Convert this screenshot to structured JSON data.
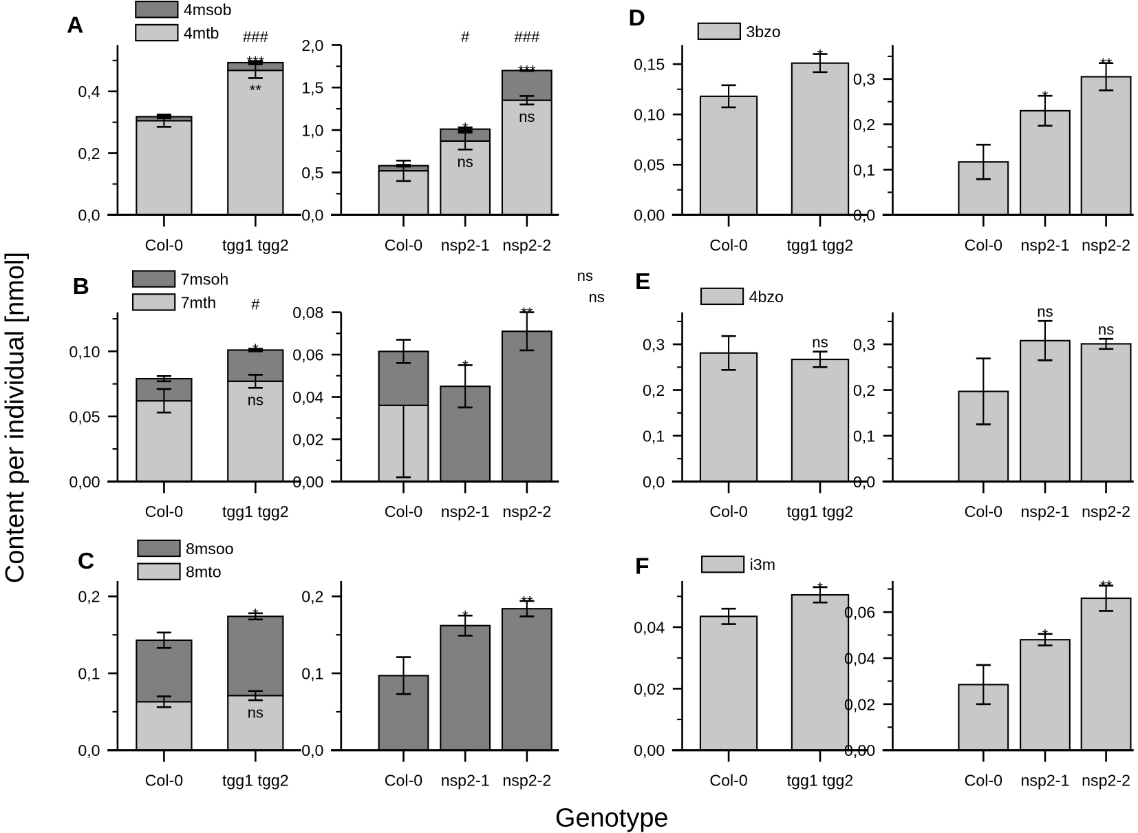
{
  "figure": {
    "ylabel": "Content per individual [nmol]",
    "xlabel": "Genotype",
    "panel_letters": [
      "A",
      "B",
      "C",
      "D",
      "E",
      "F"
    ],
    "stray_annotations": [
      "ns",
      "ns"
    ],
    "colors": {
      "light": "#c8c8c8",
      "dark": "#808080",
      "axis": "#000000"
    }
  },
  "chart_data": [
    {
      "type": "bar",
      "stacked": true,
      "panel": "A-left",
      "categories": [
        "Col-0",
        "tgg1 tgg2"
      ],
      "ylim": [
        0,
        0.55
      ],
      "yticks": [
        {
          "v": 0,
          "label": "0,0"
        },
        {
          "v": 0.2,
          "label": "0,2"
        },
        {
          "v": 0.4,
          "label": "0,4"
        }
      ],
      "minor_step": 0.1,
      "legend": [
        {
          "name": "4msob",
          "color": "dark"
        },
        {
          "name": "4mtb",
          "color": "light"
        }
      ],
      "series": [
        {
          "name": "4mtb",
          "color": "light",
          "values": [
            0.305,
            0.468
          ],
          "errors": [
            0.02,
            0.025
          ]
        },
        {
          "name": "4msob",
          "color": "dark",
          "values": [
            0.013,
            0.025
          ],
          "errors": [
            0.005,
            0.005
          ]
        }
      ],
      "annotations": [
        {
          "cat": 1,
          "text": "**",
          "anchor": "inside"
        },
        {
          "cat": 1,
          "text": "***",
          "anchor": "above"
        },
        {
          "cat": 1,
          "text": "###",
          "anchor": "top"
        }
      ]
    },
    {
      "type": "bar",
      "stacked": true,
      "panel": "A-right",
      "categories": [
        "Col-0",
        "nsp2-1",
        "nsp2-2"
      ],
      "ylim": [
        0,
        2.0
      ],
      "yticks": [
        {
          "v": 0,
          "label": "0,0"
        },
        {
          "v": 0.5,
          "label": "0,5"
        },
        {
          "v": 1.0,
          "label": "1,0"
        },
        {
          "v": 1.5,
          "label": "1,5"
        },
        {
          "v": 2.0,
          "label": "2,0"
        }
      ],
      "minor_step": 0.25,
      "series": [
        {
          "name": "4mtb",
          "color": "light",
          "values": [
            0.52,
            0.87,
            1.35
          ],
          "errors": [
            0.12,
            0.1,
            0.05
          ]
        },
        {
          "name": "4msob",
          "color": "dark",
          "values": [
            0.06,
            0.14,
            0.35
          ],
          "errors": [
            0.01,
            0.02,
            0.005
          ]
        }
      ],
      "annotations": [
        {
          "cat": 1,
          "text": "ns",
          "anchor": "inside"
        },
        {
          "cat": 2,
          "text": "ns",
          "anchor": "inside"
        },
        {
          "cat": 1,
          "text": "*",
          "anchor": "above"
        },
        {
          "cat": 2,
          "text": "***",
          "anchor": "above"
        },
        {
          "cat": 1,
          "text": "#",
          "anchor": "top"
        },
        {
          "cat": 2,
          "text": "###",
          "anchor": "top"
        }
      ]
    },
    {
      "type": "bar",
      "stacked": true,
      "panel": "B-left",
      "categories": [
        "Col-0",
        "tgg1 tgg2"
      ],
      "ylim": [
        0,
        0.13
      ],
      "yticks": [
        {
          "v": 0,
          "label": "0,00"
        },
        {
          "v": 0.05,
          "label": "0,05"
        },
        {
          "v": 0.1,
          "label": "0,10"
        }
      ],
      "minor_step": 0.025,
      "legend": [
        {
          "name": "7msoh",
          "color": "dark"
        },
        {
          "name": "7mth",
          "color": "light"
        }
      ],
      "series": [
        {
          "name": "7mth",
          "color": "light",
          "values": [
            0.062,
            0.077
          ],
          "errors": [
            0.009,
            0.005
          ]
        },
        {
          "name": "7msoh",
          "color": "dark",
          "values": [
            0.017,
            0.024
          ],
          "errors": [
            0.002,
            0.001
          ]
        }
      ],
      "annotations": [
        {
          "cat": 1,
          "text": "ns",
          "anchor": "inside"
        },
        {
          "cat": 1,
          "text": "*",
          "anchor": "above"
        },
        {
          "cat": 1,
          "text": "#",
          "anchor": "top"
        }
      ]
    },
    {
      "type": "bar",
      "stacked": true,
      "panel": "B-right",
      "categories": [
        "Col-0",
        "nsp2-1",
        "nsp2-2"
      ],
      "ylim": [
        0,
        0.08
      ],
      "yticks": [
        {
          "v": 0,
          "label": "0,00"
        },
        {
          "v": 0.02,
          "label": "0,02"
        },
        {
          "v": 0.04,
          "label": "0,04"
        },
        {
          "v": 0.06,
          "label": "0,06"
        },
        {
          "v": 0.08,
          "label": "0,08"
        }
      ],
      "minor_step": 0.01,
      "series": [
        {
          "name": "7mth",
          "color": "light",
          "values": [
            0.036,
            0,
            0
          ],
          "errors": [
            0.034,
            0,
            0
          ],
          "err_dir": "down"
        },
        {
          "name": "7msoh",
          "color": "dark",
          "values": [
            0.0255,
            0.045,
            0.071
          ],
          "errors": [
            0.0055,
            0.01,
            0.009
          ]
        }
      ],
      "annotations": [
        {
          "cat": 1,
          "text": "*",
          "anchor": "above"
        },
        {
          "cat": 2,
          "text": "**",
          "anchor": "above"
        }
      ]
    },
    {
      "type": "bar",
      "stacked": true,
      "panel": "C-left",
      "categories": [
        "Col-0",
        "tgg1 tgg2"
      ],
      "ylim": [
        0,
        0.22
      ],
      "yticks": [
        {
          "v": 0,
          "label": "0,0"
        },
        {
          "v": 0.1,
          "label": "0,1"
        },
        {
          "v": 0.2,
          "label": "0,2"
        }
      ],
      "minor_step": 0.05,
      "legend": [
        {
          "name": "8msoo",
          "color": "dark"
        },
        {
          "name": "8mto",
          "color": "light"
        }
      ],
      "series": [
        {
          "name": "8mto",
          "color": "light",
          "values": [
            0.063,
            0.071
          ],
          "errors": [
            0.007,
            0.006
          ]
        },
        {
          "name": "8msoo",
          "color": "dark",
          "values": [
            0.08,
            0.103
          ],
          "errors": [
            0.01,
            0.004
          ]
        }
      ],
      "annotations": [
        {
          "cat": 1,
          "text": "ns",
          "anchor": "inside"
        },
        {
          "cat": 1,
          "text": "*",
          "anchor": "above"
        }
      ]
    },
    {
      "type": "bar",
      "stacked": false,
      "panel": "C-right",
      "categories": [
        "Col-0",
        "nsp2-1",
        "nsp2-2"
      ],
      "ylim": [
        0,
        0.22
      ],
      "yticks": [
        {
          "v": 0,
          "label": "0,0"
        },
        {
          "v": 0.1,
          "label": "0,1"
        },
        {
          "v": 0.2,
          "label": "0,2"
        }
      ],
      "minor_step": 0.05,
      "series": [
        {
          "name": "8msoo",
          "color": "dark",
          "values": [
            0.097,
            0.162,
            0.184
          ],
          "errors": [
            0.024,
            0.013,
            0.01
          ]
        }
      ],
      "annotations": [
        {
          "cat": 1,
          "text": "*",
          "anchor": "above"
        },
        {
          "cat": 2,
          "text": "**",
          "anchor": "above"
        }
      ]
    },
    {
      "type": "bar",
      "stacked": false,
      "panel": "D-left",
      "categories": [
        "Col-0",
        "tgg1 tgg2"
      ],
      "ylim": [
        0,
        0.169
      ],
      "yticks": [
        {
          "v": 0,
          "label": "0,00"
        },
        {
          "v": 0.05,
          "label": "0,05"
        },
        {
          "v": 0.1,
          "label": "0,10"
        },
        {
          "v": 0.15,
          "label": "0,15"
        }
      ],
      "minor_step": 0.025,
      "legend": [
        {
          "name": "3bzo",
          "color": "light"
        }
      ],
      "series": [
        {
          "name": "3bzo",
          "color": "light",
          "values": [
            0.118,
            0.151
          ],
          "errors": [
            0.011,
            0.009
          ]
        }
      ],
      "annotations": [
        {
          "cat": 1,
          "text": "*",
          "anchor": "above"
        }
      ]
    },
    {
      "type": "bar",
      "stacked": false,
      "panel": "D-right",
      "categories": [
        "Col-0",
        "nsp2-1",
        "nsp2-2"
      ],
      "ylim": [
        0,
        0.375
      ],
      "yticks": [
        {
          "v": 0,
          "label": "0,0"
        },
        {
          "v": 0.1,
          "label": "0,1"
        },
        {
          "v": 0.2,
          "label": "0,2"
        },
        {
          "v": 0.3,
          "label": "0,3"
        }
      ],
      "minor_step": 0.05,
      "series": [
        {
          "name": "3bzo",
          "color": "light",
          "values": [
            0.117,
            0.23,
            0.305
          ],
          "errors": [
            0.038,
            0.033,
            0.03
          ]
        }
      ],
      "annotations": [
        {
          "cat": 1,
          "text": "*",
          "anchor": "above"
        },
        {
          "cat": 2,
          "text": "**",
          "anchor": "above"
        }
      ]
    },
    {
      "type": "bar",
      "stacked": false,
      "panel": "E-left",
      "categories": [
        "Col-0",
        "tgg1 tgg2"
      ],
      "ylim": [
        0,
        0.37
      ],
      "yticks": [
        {
          "v": 0,
          "label": "0,0"
        },
        {
          "v": 0.1,
          "label": "0,1"
        },
        {
          "v": 0.2,
          "label": "0,2"
        },
        {
          "v": 0.3,
          "label": "0,3"
        }
      ],
      "minor_step": 0.05,
      "legend": [
        {
          "name": "4bzo",
          "color": "light"
        }
      ],
      "series": [
        {
          "name": "4bzo",
          "color": "light",
          "values": [
            0.281,
            0.267
          ],
          "errors": [
            0.037,
            0.017
          ]
        }
      ],
      "annotations": [
        {
          "cat": 1,
          "text": "ns",
          "anchor": "above"
        }
      ]
    },
    {
      "type": "bar",
      "stacked": false,
      "panel": "E-right",
      "categories": [
        "Col-0",
        "nsp2-1",
        "nsp2-2"
      ],
      "ylim": [
        0,
        0.37
      ],
      "yticks": [
        {
          "v": 0,
          "label": "0,0"
        },
        {
          "v": 0.1,
          "label": "0,1"
        },
        {
          "v": 0.2,
          "label": "0,2"
        },
        {
          "v": 0.3,
          "label": "0,3"
        }
      ],
      "minor_step": 0.05,
      "series": [
        {
          "name": "4bzo",
          "color": "light",
          "values": [
            0.197,
            0.308,
            0.301
          ],
          "errors": [
            0.072,
            0.043,
            0.011
          ]
        }
      ],
      "annotations": [
        {
          "cat": 1,
          "text": "ns",
          "anchor": "above"
        },
        {
          "cat": 2,
          "text": "ns",
          "anchor": "above"
        }
      ]
    },
    {
      "type": "bar",
      "stacked": false,
      "panel": "F-left",
      "categories": [
        "Col-0",
        "tgg1 tgg2"
      ],
      "ylim": [
        0,
        0.055
      ],
      "yticks": [
        {
          "v": 0,
          "label": "0,00"
        },
        {
          "v": 0.02,
          "label": "0,02"
        },
        {
          "v": 0.04,
          "label": "0,04"
        }
      ],
      "minor_step": 0.01,
      "legend": [
        {
          "name": "i3m",
          "color": "light"
        }
      ],
      "series": [
        {
          "name": "i3m",
          "color": "light",
          "values": [
            0.0435,
            0.0505
          ],
          "errors": [
            0.0025,
            0.0025
          ]
        }
      ],
      "annotations": [
        {
          "cat": 1,
          "text": "*",
          "anchor": "above"
        }
      ]
    },
    {
      "type": "bar",
      "stacked": false,
      "panel": "F-right",
      "categories": [
        "Col-0",
        "nsp2-1",
        "nsp2-2"
      ],
      "ylim": [
        0,
        0.0735
      ],
      "yticks": [
        {
          "v": 0,
          "label": "0,00"
        },
        {
          "v": 0.02,
          "label": "0,02"
        },
        {
          "v": 0.04,
          "label": "0,04"
        },
        {
          "v": 0.06,
          "label": "0,06"
        }
      ],
      "minor_step": 0.01,
      "series": [
        {
          "name": "i3m",
          "color": "light",
          "values": [
            0.0285,
            0.048,
            0.066
          ],
          "errors": [
            0.0085,
            0.0025,
            0.0055
          ]
        }
      ],
      "annotations": [
        {
          "cat": 1,
          "text": "*",
          "anchor": "above"
        },
        {
          "cat": 2,
          "text": "**",
          "anchor": "above"
        }
      ]
    }
  ]
}
